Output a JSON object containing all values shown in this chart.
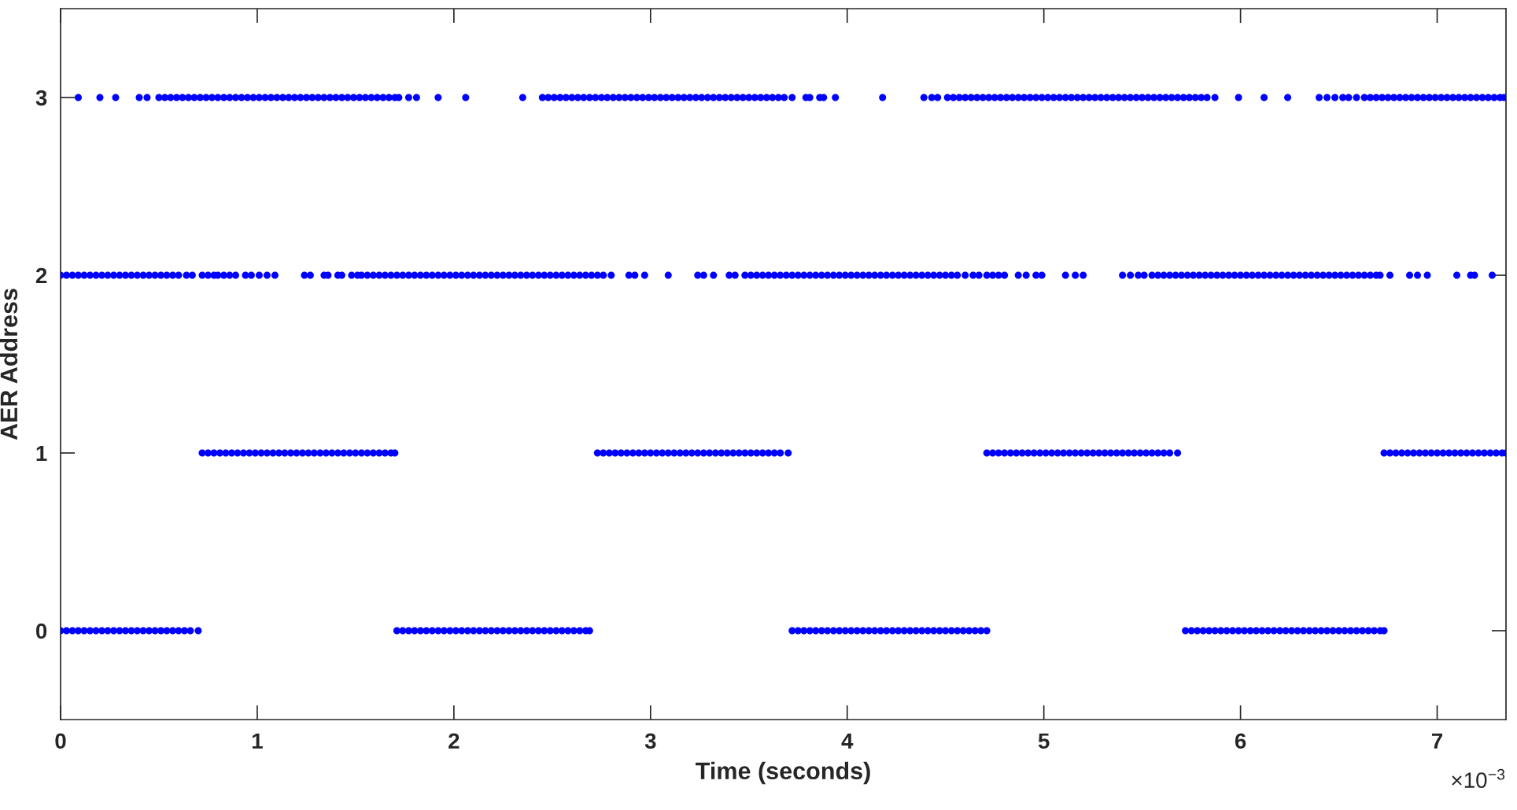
{
  "chart_data": {
    "type": "scatter",
    "xlabel": "Time (seconds)",
    "ylabel": "AER Address",
    "annotations": [
      "×10$^{−3}$"
    ],
    "xlim": [
      0,
      7.35
    ],
    "ylim": [
      -0.5,
      3.5
    ],
    "xticks": [
      0,
      1,
      2,
      3,
      4,
      5,
      6,
      7
    ],
    "yticks": [
      0,
      1,
      2,
      3
    ],
    "marker": "circle",
    "series": [
      {
        "color": "#0000ff",
        "x": [
          0.0,
          0.03,
          0.06,
          0.09,
          0.12,
          0.15,
          0.18,
          0.21,
          0.24,
          0.27,
          0.3,
          0.33,
          0.36,
          0.39,
          0.42,
          0.45,
          0.48,
          0.51,
          0.54,
          0.57,
          0.6,
          0.63,
          0.66,
          0.7,
          1.71,
          1.74,
          1.77,
          1.8,
          1.83,
          1.86,
          1.89,
          1.92,
          1.95,
          1.98,
          2.01,
          2.04,
          2.07,
          2.1,
          2.13,
          2.16,
          2.19,
          2.22,
          2.25,
          2.28,
          2.31,
          2.34,
          2.37,
          2.4,
          2.43,
          2.46,
          2.49,
          2.52,
          2.55,
          2.58,
          2.61,
          2.64,
          2.67,
          2.69,
          3.72,
          3.75,
          3.78,
          3.81,
          3.84,
          3.87,
          3.9,
          3.93,
          3.96,
          3.99,
          4.02,
          4.05,
          4.08,
          4.11,
          4.14,
          4.17,
          4.2,
          4.23,
          4.26,
          4.29,
          4.32,
          4.35,
          4.38,
          4.41,
          4.44,
          4.47,
          4.5,
          4.53,
          4.56,
          4.59,
          4.62,
          4.65,
          4.68,
          4.71,
          5.72,
          5.75,
          5.78,
          5.81,
          5.84,
          5.87,
          5.9,
          5.93,
          5.96,
          5.99,
          6.02,
          6.05,
          6.08,
          6.11,
          6.14,
          6.17,
          6.2,
          6.23,
          6.26,
          6.29,
          6.32,
          6.35,
          6.38,
          6.41,
          6.44,
          6.47,
          6.5,
          6.53,
          6.56,
          6.59,
          6.62,
          6.65,
          6.68,
          6.71,
          6.73
        ],
        "values": [
          0,
          0,
          0,
          0,
          0,
          0,
          0,
          0,
          0,
          0,
          0,
          0,
          0,
          0,
          0,
          0,
          0,
          0,
          0,
          0,
          0,
          0,
          0,
          0,
          0,
          0,
          0,
          0,
          0,
          0,
          0,
          0,
          0,
          0,
          0,
          0,
          0,
          0,
          0,
          0,
          0,
          0,
          0,
          0,
          0,
          0,
          0,
          0,
          0,
          0,
          0,
          0,
          0,
          0,
          0,
          0,
          0,
          0,
          0,
          0,
          0,
          0,
          0,
          0,
          0,
          0,
          0,
          0,
          0,
          0,
          0,
          0,
          0,
          0,
          0,
          0,
          0,
          0,
          0,
          0,
          0,
          0,
          0,
          0,
          0,
          0,
          0,
          0,
          0,
          0,
          0,
          0,
          0,
          0,
          0,
          0,
          0,
          0,
          0,
          0,
          0,
          0,
          0,
          0,
          0,
          0,
          0,
          0,
          0,
          0,
          0,
          0,
          0,
          0,
          0,
          0,
          0,
          0,
          0,
          0,
          0,
          0,
          0,
          0,
          0,
          0,
          0
        ]
      },
      {
        "color": "#0000ff",
        "x": [
          0.72,
          0.75,
          0.78,
          0.81,
          0.84,
          0.87,
          0.9,
          0.93,
          0.96,
          0.99,
          1.02,
          1.05,
          1.08,
          1.11,
          1.14,
          1.17,
          1.2,
          1.23,
          1.26,
          1.29,
          1.32,
          1.35,
          1.38,
          1.41,
          1.44,
          1.47,
          1.5,
          1.53,
          1.56,
          1.59,
          1.62,
          1.65,
          1.68,
          1.7,
          2.73,
          2.76,
          2.79,
          2.82,
          2.85,
          2.88,
          2.91,
          2.94,
          2.97,
          3.0,
          3.03,
          3.06,
          3.09,
          3.12,
          3.15,
          3.18,
          3.21,
          3.24,
          3.27,
          3.3,
          3.33,
          3.36,
          3.39,
          3.42,
          3.45,
          3.48,
          3.51,
          3.54,
          3.57,
          3.6,
          3.63,
          3.66,
          3.7,
          4.71,
          4.74,
          4.77,
          4.8,
          4.83,
          4.86,
          4.89,
          4.92,
          4.95,
          4.98,
          5.01,
          5.04,
          5.07,
          5.1,
          5.13,
          5.16,
          5.19,
          5.22,
          5.25,
          5.28,
          5.31,
          5.34,
          5.37,
          5.4,
          5.43,
          5.46,
          5.49,
          5.52,
          5.55,
          5.58,
          5.61,
          5.64,
          5.68,
          6.73,
          6.76,
          6.79,
          6.82,
          6.85,
          6.88,
          6.91,
          6.94,
          6.97,
          7.0,
          7.03,
          7.06,
          7.09,
          7.12,
          7.15,
          7.18,
          7.21,
          7.24,
          7.27,
          7.3,
          7.33,
          7.35
        ],
        "values": [
          1,
          1,
          1,
          1,
          1,
          1,
          1,
          1,
          1,
          1,
          1,
          1,
          1,
          1,
          1,
          1,
          1,
          1,
          1,
          1,
          1,
          1,
          1,
          1,
          1,
          1,
          1,
          1,
          1,
          1,
          1,
          1,
          1,
          1,
          1,
          1,
          1,
          1,
          1,
          1,
          1,
          1,
          1,
          1,
          1,
          1,
          1,
          1,
          1,
          1,
          1,
          1,
          1,
          1,
          1,
          1,
          1,
          1,
          1,
          1,
          1,
          1,
          1,
          1,
          1,
          1,
          1,
          1,
          1,
          1,
          1,
          1,
          1,
          1,
          1,
          1,
          1,
          1,
          1,
          1,
          1,
          1,
          1,
          1,
          1,
          1,
          1,
          1,
          1,
          1,
          1,
          1,
          1,
          1,
          1,
          1,
          1,
          1,
          1,
          1,
          1,
          1,
          1,
          1,
          1,
          1,
          1,
          1,
          1,
          1,
          1,
          1,
          1,
          1,
          1,
          1,
          1,
          1,
          1,
          1,
          1,
          1
        ]
      },
      {
        "color": "#0000ff",
        "x": [
          0.0,
          0.03,
          0.06,
          0.09,
          0.12,
          0.15,
          0.18,
          0.21,
          0.24,
          0.27,
          0.3,
          0.33,
          0.36,
          0.39,
          0.42,
          0.45,
          0.48,
          0.51,
          0.54,
          0.57,
          0.6,
          0.64,
          0.67,
          0.72,
          0.75,
          0.78,
          0.8,
          0.83,
          0.86,
          0.89,
          0.94,
          0.97,
          1.01,
          1.05,
          1.09,
          1.24,
          1.27,
          1.34,
          1.36,
          1.41,
          1.43,
          1.48,
          1.51,
          1.53,
          1.56,
          1.59,
          1.62,
          1.65,
          1.68,
          1.71,
          1.74,
          1.77,
          1.8,
          1.83,
          1.86,
          1.89,
          1.92,
          1.95,
          1.98,
          2.01,
          2.04,
          2.07,
          2.1,
          2.13,
          2.16,
          2.19,
          2.22,
          2.25,
          2.28,
          2.31,
          2.34,
          2.37,
          2.4,
          2.43,
          2.46,
          2.49,
          2.52,
          2.55,
          2.58,
          2.61,
          2.64,
          2.67,
          2.7,
          2.73,
          2.76,
          2.8,
          2.89,
          2.92,
          2.97,
          3.09,
          3.24,
          3.27,
          3.32,
          3.4,
          3.43,
          3.48,
          3.51,
          3.54,
          3.57,
          3.6,
          3.63,
          3.66,
          3.69,
          3.72,
          3.75,
          3.78,
          3.81,
          3.84,
          3.87,
          3.9,
          3.93,
          3.96,
          3.99,
          4.02,
          4.05,
          4.08,
          4.11,
          4.14,
          4.17,
          4.2,
          4.23,
          4.26,
          4.29,
          4.32,
          4.35,
          4.38,
          4.41,
          4.44,
          4.47,
          4.5,
          4.53,
          4.56,
          4.6,
          4.64,
          4.67,
          4.71,
          4.74,
          4.77,
          4.8,
          4.87,
          4.91,
          4.96,
          4.99,
          5.11,
          5.16,
          5.2,
          5.4,
          5.44,
          5.48,
          5.51,
          5.55,
          5.58,
          5.61,
          5.64,
          5.67,
          5.7,
          5.73,
          5.76,
          5.79,
          5.82,
          5.85,
          5.88,
          5.91,
          5.94,
          5.97,
          6.0,
          6.03,
          6.06,
          6.09,
          6.12,
          6.15,
          6.18,
          6.21,
          6.24,
          6.27,
          6.3,
          6.33,
          6.36,
          6.39,
          6.42,
          6.45,
          6.48,
          6.51,
          6.54,
          6.57,
          6.6,
          6.63,
          6.66,
          6.69,
          6.71,
          6.76,
          6.86,
          6.9,
          6.95,
          7.1,
          7.17,
          7.19,
          7.28
        ],
        "values": [
          2,
          2,
          2,
          2,
          2,
          2,
          2,
          2,
          2,
          2,
          2,
          2,
          2,
          2,
          2,
          2,
          2,
          2,
          2,
          2,
          2,
          2,
          2,
          2,
          2,
          2,
          2,
          2,
          2,
          2,
          2,
          2,
          2,
          2,
          2,
          2,
          2,
          2,
          2,
          2,
          2,
          2,
          2,
          2,
          2,
          2,
          2,
          2,
          2,
          2,
          2,
          2,
          2,
          2,
          2,
          2,
          2,
          2,
          2,
          2,
          2,
          2,
          2,
          2,
          2,
          2,
          2,
          2,
          2,
          2,
          2,
          2,
          2,
          2,
          2,
          2,
          2,
          2,
          2,
          2,
          2,
          2,
          2,
          2,
          2,
          2,
          2,
          2,
          2,
          2,
          2,
          2,
          2,
          2,
          2,
          2,
          2,
          2,
          2,
          2,
          2,
          2,
          2,
          2,
          2,
          2,
          2,
          2,
          2,
          2,
          2,
          2,
          2,
          2,
          2,
          2,
          2,
          2,
          2,
          2,
          2,
          2,
          2,
          2,
          2,
          2,
          2,
          2,
          2,
          2,
          2,
          2,
          2,
          2,
          2,
          2,
          2,
          2,
          2,
          2,
          2,
          2,
          2,
          2,
          2,
          2,
          2,
          2,
          2,
          2,
          2,
          2,
          2,
          2,
          2,
          2,
          2,
          2,
          2,
          2,
          2,
          2,
          2,
          2,
          2,
          2,
          2,
          2,
          2,
          2,
          2,
          2,
          2,
          2,
          2,
          2,
          2,
          2,
          2,
          2,
          2,
          2,
          2,
          2,
          2,
          2,
          2,
          2,
          2,
          2,
          2,
          2,
          2,
          2,
          2,
          2,
          2,
          2
        ]
      },
      {
        "color": "#0000ff",
        "x": [
          0.09,
          0.2,
          0.28,
          0.4,
          0.44,
          0.5,
          0.53,
          0.56,
          0.59,
          0.62,
          0.65,
          0.68,
          0.71,
          0.74,
          0.77,
          0.8,
          0.83,
          0.86,
          0.89,
          0.92,
          0.95,
          0.98,
          1.01,
          1.04,
          1.07,
          1.1,
          1.13,
          1.16,
          1.19,
          1.22,
          1.25,
          1.28,
          1.31,
          1.34,
          1.37,
          1.4,
          1.43,
          1.46,
          1.49,
          1.52,
          1.55,
          1.58,
          1.61,
          1.64,
          1.67,
          1.7,
          1.72,
          1.77,
          1.81,
          1.92,
          2.06,
          2.35,
          2.45,
          2.48,
          2.51,
          2.54,
          2.57,
          2.6,
          2.63,
          2.66,
          2.69,
          2.72,
          2.75,
          2.78,
          2.81,
          2.84,
          2.87,
          2.9,
          2.93,
          2.96,
          2.99,
          3.02,
          3.05,
          3.08,
          3.11,
          3.14,
          3.17,
          3.2,
          3.23,
          3.26,
          3.29,
          3.32,
          3.35,
          3.38,
          3.41,
          3.44,
          3.47,
          3.5,
          3.53,
          3.56,
          3.59,
          3.62,
          3.65,
          3.68,
          3.72,
          3.79,
          3.81,
          3.86,
          3.88,
          3.94,
          4.18,
          4.39,
          4.43,
          4.46,
          4.51,
          4.54,
          4.57,
          4.6,
          4.63,
          4.66,
          4.69,
          4.72,
          4.75,
          4.78,
          4.81,
          4.84,
          4.87,
          4.9,
          4.93,
          4.96,
          4.99,
          5.02,
          5.05,
          5.08,
          5.11,
          5.14,
          5.17,
          5.2,
          5.23,
          5.26,
          5.29,
          5.32,
          5.35,
          5.38,
          5.41,
          5.44,
          5.47,
          5.5,
          5.53,
          5.56,
          5.59,
          5.62,
          5.65,
          5.68,
          5.71,
          5.74,
          5.77,
          5.8,
          5.83,
          5.87,
          5.99,
          6.12,
          6.24,
          6.4,
          6.44,
          6.48,
          6.52,
          6.55,
          6.59,
          6.63,
          6.66,
          6.69,
          6.72,
          6.75,
          6.78,
          6.81,
          6.84,
          6.87,
          6.9,
          6.93,
          6.96,
          6.99,
          7.02,
          7.05,
          7.08,
          7.11,
          7.14,
          7.17,
          7.2,
          7.23,
          7.26,
          7.29,
          7.32,
          7.34
        ],
        "values": [
          3,
          3,
          3,
          3,
          3,
          3,
          3,
          3,
          3,
          3,
          3,
          3,
          3,
          3,
          3,
          3,
          3,
          3,
          3,
          3,
          3,
          3,
          3,
          3,
          3,
          3,
          3,
          3,
          3,
          3,
          3,
          3,
          3,
          3,
          3,
          3,
          3,
          3,
          3,
          3,
          3,
          3,
          3,
          3,
          3,
          3,
          3,
          3,
          3,
          3,
          3,
          3,
          3,
          3,
          3,
          3,
          3,
          3,
          3,
          3,
          3,
          3,
          3,
          3,
          3,
          3,
          3,
          3,
          3,
          3,
          3,
          3,
          3,
          3,
          3,
          3,
          3,
          3,
          3,
          3,
          3,
          3,
          3,
          3,
          3,
          3,
          3,
          3,
          3,
          3,
          3,
          3,
          3,
          3,
          3,
          3,
          3,
          3,
          3,
          3,
          3,
          3,
          3,
          3,
          3,
          3,
          3,
          3,
          3,
          3,
          3,
          3,
          3,
          3,
          3,
          3,
          3,
          3,
          3,
          3,
          3,
          3,
          3,
          3,
          3,
          3,
          3,
          3,
          3,
          3,
          3,
          3,
          3,
          3,
          3,
          3,
          3,
          3,
          3,
          3,
          3,
          3,
          3,
          3,
          3,
          3,
          3,
          3,
          3,
          3,
          3,
          3,
          3,
          3,
          3,
          3,
          3,
          3,
          3,
          3,
          3,
          3,
          3,
          3,
          3,
          3,
          3,
          3,
          3,
          3,
          3,
          3,
          3,
          3,
          3,
          3,
          3,
          3,
          3,
          3,
          3,
          3,
          3,
          3
        ]
      }
    ]
  }
}
